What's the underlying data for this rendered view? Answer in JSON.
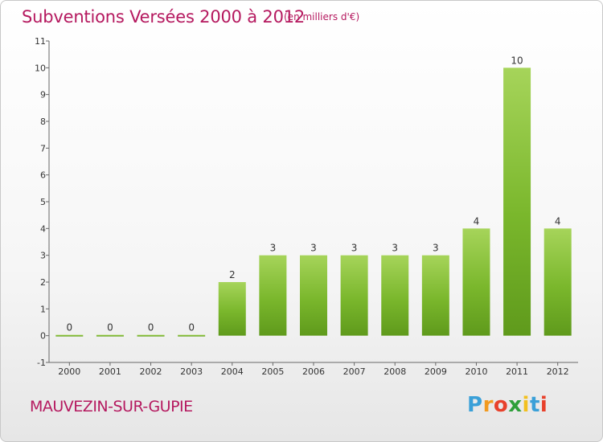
{
  "header": {
    "title": "Subventions Versées 2000 à 2012",
    "subtitle": "(en milliers d'€)"
  },
  "footer": {
    "commune": "MAUVEZIN-SUR-GUPIE",
    "logo": {
      "letters": [
        "P",
        "r",
        "o",
        "x",
        "i",
        "t",
        "i"
      ],
      "colors": [
        "#3aa0d8",
        "#f29a1f",
        "#e8412b",
        "#2e9f3a",
        "#f2c01f",
        "#3aa0d8",
        "#e8412b"
      ]
    }
  },
  "chart_data": {
    "type": "bar",
    "title": "Subventions Versées 2000 à 2012",
    "subtitle": "(en milliers d'€)",
    "categories": [
      "2000",
      "2001",
      "2002",
      "2003",
      "2004",
      "2005",
      "2006",
      "2007",
      "2008",
      "2009",
      "2010",
      "2011",
      "2012"
    ],
    "values": [
      0,
      0,
      0,
      0,
      2,
      3,
      3,
      3,
      3,
      3,
      4,
      10,
      4
    ],
    "value_labels": [
      "0",
      "0",
      "0",
      "0",
      "2",
      "3",
      "3",
      "3",
      "3",
      "3",
      "4",
      "10",
      "4"
    ],
    "y_ticks": [
      "-1",
      "0",
      "1",
      "2",
      "3",
      "4",
      "5",
      "6",
      "7",
      "8",
      "9",
      "10",
      "11"
    ],
    "ylim": [
      -1,
      11
    ],
    "grid": false,
    "bar_color": "#7ab72c",
    "bar_color_light": "#a6d45a",
    "bar_color_dark": "#5f9a1c"
  }
}
